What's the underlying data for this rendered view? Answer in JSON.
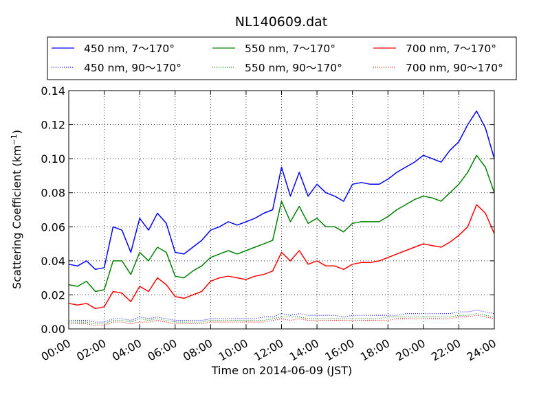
{
  "chart_data": {
    "type": "line",
    "title": "NL140609.dat",
    "xlabel": "Time on 2014-06-09 (JST)",
    "ylabel": "Scattering Coefficient (km",
    "ylabel_sup": "−1",
    "ylabel_close": ")",
    "xlim": [
      "00:00",
      "24:00"
    ],
    "ylim": [
      0.0,
      0.14
    ],
    "grid": true,
    "legend_position": "top (above axes), 3 columns",
    "x_ticks": [
      "00:00",
      "02:00",
      "04:00",
      "06:00",
      "08:00",
      "10:00",
      "12:00",
      "14:00",
      "16:00",
      "18:00",
      "20:00",
      "22:00",
      "24:00"
    ],
    "y_ticks": [
      "0.00",
      "0.02",
      "0.04",
      "0.06",
      "0.08",
      "0.10",
      "0.12",
      "0.14"
    ],
    "x": [
      "00:00",
      "00:30",
      "01:00",
      "01:30",
      "02:00",
      "02:30",
      "03:00",
      "03:30",
      "04:00",
      "04:30",
      "05:00",
      "05:30",
      "06:00",
      "06:30",
      "07:00",
      "07:30",
      "08:00",
      "08:30",
      "09:00",
      "09:30",
      "10:00",
      "10:30",
      "11:00",
      "11:30",
      "12:00",
      "12:30",
      "13:00",
      "13:30",
      "14:00",
      "14:30",
      "15:00",
      "15:30",
      "16:00",
      "16:30",
      "17:00",
      "17:30",
      "18:00",
      "18:30",
      "19:00",
      "19:30",
      "20:00",
      "20:30",
      "21:00",
      "21:30",
      "22:00",
      "22:30",
      "23:00",
      "23:30",
      "24:00"
    ],
    "series": [
      {
        "name": "450 nm, 7～170°",
        "color": "#0000ff",
        "style": "solid",
        "values": [
          0.038,
          0.037,
          0.04,
          0.035,
          0.036,
          0.06,
          0.058,
          0.045,
          0.065,
          0.058,
          0.068,
          0.062,
          0.045,
          0.044,
          0.048,
          0.052,
          0.058,
          0.06,
          0.063,
          0.061,
          0.063,
          0.065,
          0.068,
          0.07,
          0.095,
          0.078,
          0.092,
          0.078,
          0.085,
          0.08,
          0.078,
          0.075,
          0.085,
          0.086,
          0.085,
          0.085,
          0.088,
          0.092,
          0.095,
          0.098,
          0.102,
          0.1,
          0.098,
          0.105,
          0.11,
          0.12,
          0.128,
          0.118,
          0.1
        ]
      },
      {
        "name": "450 nm, 90～170°",
        "color": "#0000ff",
        "style": "dotted",
        "values": [
          0.005,
          0.005,
          0.005,
          0.004,
          0.004,
          0.006,
          0.006,
          0.005,
          0.007,
          0.006,
          0.007,
          0.006,
          0.005,
          0.005,
          0.005,
          0.005,
          0.006,
          0.006,
          0.006,
          0.006,
          0.006,
          0.006,
          0.007,
          0.007,
          0.009,
          0.008,
          0.009,
          0.008,
          0.008,
          0.008,
          0.008,
          0.007,
          0.008,
          0.008,
          0.008,
          0.008,
          0.008,
          0.008,
          0.009,
          0.009,
          0.009,
          0.009,
          0.009,
          0.009,
          0.01,
          0.01,
          0.011,
          0.01,
          0.009
        ]
      },
      {
        "name": "550 nm, 7～170°",
        "color": "#008000",
        "style": "solid",
        "values": [
          0.026,
          0.025,
          0.028,
          0.022,
          0.023,
          0.04,
          0.04,
          0.032,
          0.045,
          0.04,
          0.048,
          0.045,
          0.031,
          0.03,
          0.034,
          0.037,
          0.042,
          0.044,
          0.046,
          0.044,
          0.046,
          0.048,
          0.05,
          0.052,
          0.075,
          0.063,
          0.072,
          0.062,
          0.065,
          0.06,
          0.06,
          0.057,
          0.062,
          0.063,
          0.063,
          0.063,
          0.066,
          0.07,
          0.073,
          0.076,
          0.078,
          0.077,
          0.075,
          0.08,
          0.085,
          0.092,
          0.102,
          0.095,
          0.08
        ]
      },
      {
        "name": "550 nm, 90～170°",
        "color": "#008000",
        "style": "dotted",
        "values": [
          0.004,
          0.004,
          0.004,
          0.003,
          0.003,
          0.005,
          0.005,
          0.004,
          0.006,
          0.005,
          0.006,
          0.005,
          0.004,
          0.004,
          0.004,
          0.004,
          0.005,
          0.005,
          0.005,
          0.005,
          0.005,
          0.005,
          0.005,
          0.006,
          0.007,
          0.007,
          0.007,
          0.006,
          0.006,
          0.006,
          0.006,
          0.006,
          0.006,
          0.006,
          0.006,
          0.006,
          0.007,
          0.007,
          0.007,
          0.007,
          0.007,
          0.007,
          0.007,
          0.007,
          0.008,
          0.008,
          0.009,
          0.008,
          0.007
        ]
      },
      {
        "name": "700 nm, 7～170°",
        "color": "#ff0000",
        "style": "solid",
        "values": [
          0.015,
          0.014,
          0.015,
          0.012,
          0.013,
          0.022,
          0.021,
          0.016,
          0.025,
          0.022,
          0.03,
          0.026,
          0.019,
          0.018,
          0.02,
          0.022,
          0.028,
          0.03,
          0.031,
          0.03,
          0.029,
          0.031,
          0.032,
          0.034,
          0.045,
          0.04,
          0.046,
          0.038,
          0.04,
          0.037,
          0.037,
          0.035,
          0.038,
          0.039,
          0.039,
          0.04,
          0.042,
          0.044,
          0.046,
          0.048,
          0.05,
          0.049,
          0.048,
          0.051,
          0.055,
          0.06,
          0.073,
          0.068,
          0.056
        ]
      },
      {
        "name": "700 nm, 90～170°",
        "color": "#ff0000",
        "style": "dotted",
        "values": [
          0.003,
          0.003,
          0.003,
          0.002,
          0.002,
          0.004,
          0.004,
          0.003,
          0.004,
          0.004,
          0.005,
          0.004,
          0.003,
          0.003,
          0.003,
          0.003,
          0.004,
          0.004,
          0.004,
          0.004,
          0.004,
          0.004,
          0.004,
          0.005,
          0.006,
          0.005,
          0.006,
          0.005,
          0.005,
          0.005,
          0.005,
          0.005,
          0.005,
          0.005,
          0.005,
          0.005,
          0.005,
          0.006,
          0.006,
          0.006,
          0.006,
          0.006,
          0.006,
          0.006,
          0.007,
          0.007,
          0.008,
          0.007,
          0.006
        ]
      }
    ]
  }
}
